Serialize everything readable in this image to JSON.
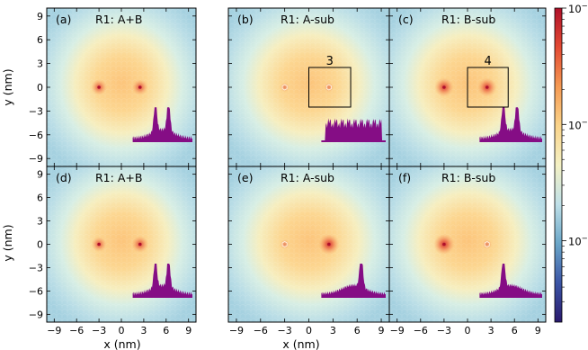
{
  "chart_data": [
    {
      "type": "heatmap",
      "panel": "(a)",
      "title": "R1: A+B",
      "sites": "A+B",
      "peaks": [
        {
          "x": -3,
          "y": 0,
          "strength": 0.55
        },
        {
          "x": 2.5,
          "y": 0,
          "strength": 0.55
        }
      ],
      "profile": "double",
      "box": null
    },
    {
      "type": "heatmap",
      "panel": "(b)",
      "title": "R1: A-sub",
      "sites": "A",
      "peaks": [
        {
          "x": -3,
          "y": 0,
          "strength": 0.15
        },
        {
          "x": 2.5,
          "y": 0,
          "strength": 0.15
        }
      ],
      "profile": "flat",
      "box": {
        "label": "3",
        "x": [
          0,
          5.2
        ],
        "y": [
          -2.5,
          2.5
        ]
      }
    },
    {
      "type": "heatmap",
      "panel": "(c)",
      "title": "R1: B-sub",
      "sites": "B",
      "peaks": [
        {
          "x": -3,
          "y": 0,
          "strength": 0.75
        },
        {
          "x": 2.5,
          "y": 0,
          "strength": 0.75
        }
      ],
      "profile": "double",
      "box": {
        "label": "4",
        "x": [
          0,
          5.2
        ],
        "y": [
          -2.5,
          2.5
        ]
      }
    },
    {
      "type": "heatmap",
      "panel": "(d)",
      "title": "R1: A+B",
      "sites": "A+B",
      "peaks": [
        {
          "x": -3,
          "y": 0,
          "strength": 0.5
        },
        {
          "x": 2.5,
          "y": 0,
          "strength": 0.6
        }
      ],
      "profile": "double",
      "box": null
    },
    {
      "type": "heatmap",
      "panel": "(e)",
      "title": "R1: A-sub",
      "sites": "A",
      "peaks": [
        {
          "x": -3,
          "y": 0,
          "strength": 0.15
        },
        {
          "x": 2.5,
          "y": 0,
          "strength": 0.85
        }
      ],
      "profile": "right",
      "box": null
    },
    {
      "type": "heatmap",
      "panel": "(f)",
      "title": "R1: B-sub",
      "sites": "B",
      "peaks": [
        {
          "x": -3,
          "y": 0,
          "strength": 0.85
        },
        {
          "x": 2.5,
          "y": 0,
          "strength": 0.15
        }
      ],
      "profile": "left",
      "box": null
    }
  ],
  "axes": {
    "xlabel": "x (nm)",
    "ylabel": "y (nm)",
    "xlim": [
      -10,
      10
    ],
    "ylim": [
      -10,
      10
    ],
    "ticks": [
      -9,
      -6,
      -3,
      0,
      3,
      6,
      9
    ],
    "tick_labels": [
      "−9",
      "−6",
      "−3",
      "0",
      "3",
      "6",
      "9"
    ]
  },
  "colorbar": {
    "scale": "log",
    "range": [
      0.0002,
      0.1
    ],
    "major_ticks": [
      0.001,
      0.01,
      0.1
    ],
    "major_labels": [
      "10",
      "10",
      "10"
    ],
    "major_exponents": [
      "−3",
      "−2",
      "−1"
    ],
    "colors": [
      "#2a1a6e",
      "#3b55a6",
      "#6aa6c8",
      "#bfe0e8",
      "#f4f1c4",
      "#fad48a",
      "#f59a53",
      "#e34a33",
      "#b0102a"
    ]
  },
  "colors": {
    "profile_fill": "#850d85",
    "box_stroke": "#000000"
  }
}
